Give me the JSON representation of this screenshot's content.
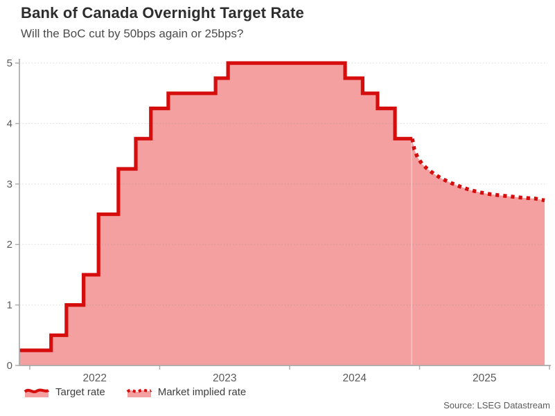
{
  "header": {
    "title": "Bank of Canada Overnight Target Rate",
    "subtitle": "Will the BoC cut by 50bps again or 25bps?"
  },
  "source": "Source: LSEG Datastream",
  "legend": [
    {
      "label": "Target rate",
      "style": "solid"
    },
    {
      "label": "Market implied rate",
      "style": "dotted"
    }
  ],
  "colors": {
    "line": "#d60d0d",
    "fill": "#f4a0a0",
    "axis": "#a9a9a9",
    "grid": "#8c8c8c",
    "text": "#595959",
    "title": "#2d2d2d"
  },
  "chart_data": {
    "type": "area",
    "title": "Bank of Canada Overnight Target Rate",
    "subtitle": "Will the BoC cut by 50bps again or 25bps?",
    "xlabel": "",
    "ylabel": "",
    "grid": "dotted-horizontal",
    "legend_position": "bottom-left",
    "ylim": [
      0,
      5.07
    ],
    "yticks": [
      0,
      1,
      2,
      3,
      4,
      5
    ],
    "x_domain_years": [
      2021.92,
      2025.984
    ],
    "year_boundaries": [
      2022,
      2023,
      2024,
      2025,
      2026
    ],
    "year_labels": [
      "2022",
      "2023",
      "2024",
      "2025"
    ],
    "series": [
      {
        "name": "Target rate",
        "draw": "step",
        "line": "solid",
        "points": [
          [
            2021.92,
            0.25
          ],
          [
            2022.164,
            0.5
          ],
          [
            2022.282,
            1.0
          ],
          [
            2022.414,
            1.5
          ],
          [
            2022.529,
            2.5
          ],
          [
            2022.682,
            3.25
          ],
          [
            2022.816,
            3.75
          ],
          [
            2022.932,
            4.25
          ],
          [
            2023.066,
            4.5
          ],
          [
            2023.43,
            4.75
          ],
          [
            2023.526,
            5.0
          ],
          [
            2024.427,
            4.75
          ],
          [
            2024.562,
            4.5
          ],
          [
            2024.677,
            4.25
          ],
          [
            2024.811,
            3.75
          ],
          [
            2024.944,
            3.75
          ]
        ]
      },
      {
        "name": "Market implied rate",
        "draw": "line",
        "line": "dotted",
        "points": [
          [
            2024.944,
            3.75
          ],
          [
            2024.96,
            3.57
          ],
          [
            2024.985,
            3.44
          ],
          [
            2025.02,
            3.33
          ],
          [
            2025.06,
            3.25
          ],
          [
            2025.11,
            3.17
          ],
          [
            2025.17,
            3.09
          ],
          [
            2025.24,
            3.02
          ],
          [
            2025.31,
            2.96
          ],
          [
            2025.39,
            2.9
          ],
          [
            2025.47,
            2.86
          ],
          [
            2025.55,
            2.83
          ],
          [
            2025.63,
            2.81
          ],
          [
            2025.72,
            2.79
          ],
          [
            2025.81,
            2.77
          ],
          [
            2025.89,
            2.76
          ],
          [
            2025.963,
            2.73
          ]
        ]
      }
    ]
  }
}
